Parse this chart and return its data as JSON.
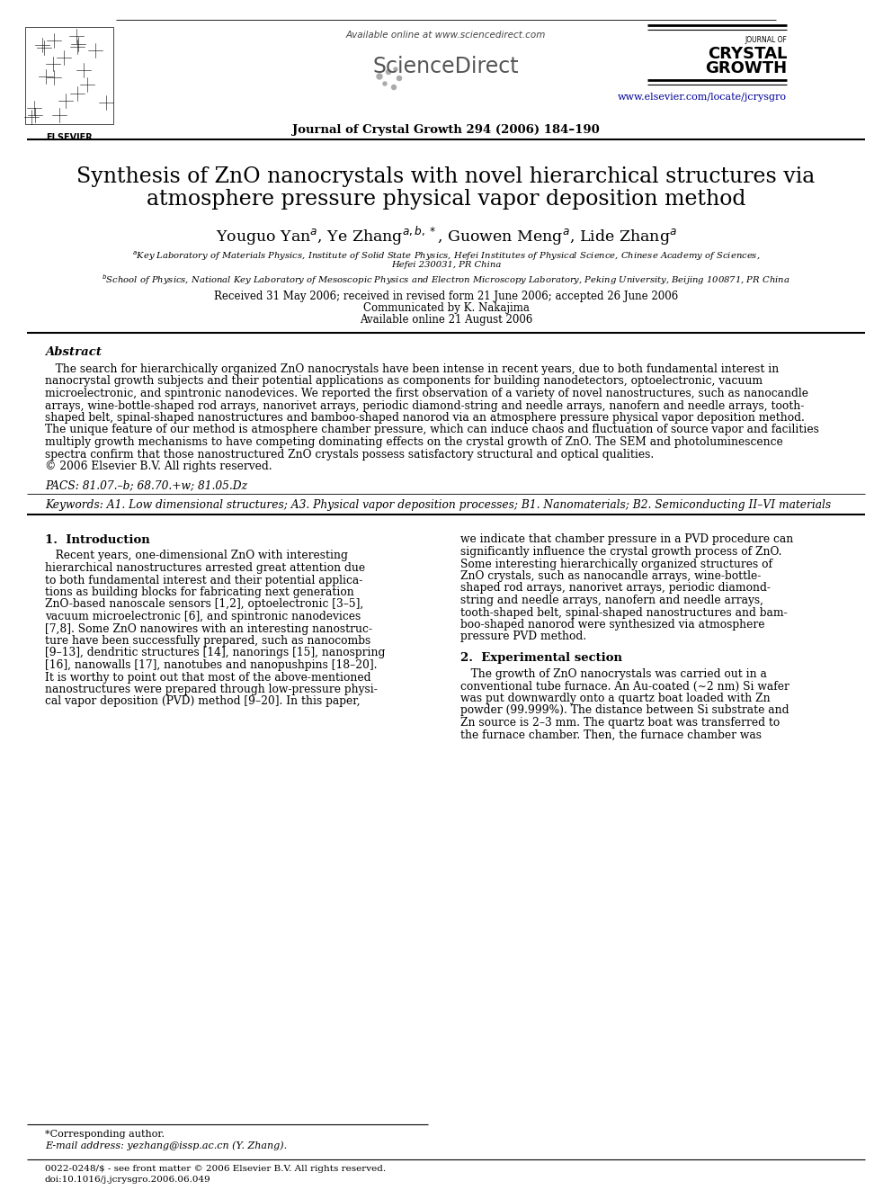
{
  "bg_color": "#ffffff",
  "title_line1": "Synthesis of ZnO nanocrystals with novel hierarchical structures via",
  "title_line2": "atmosphere pressure physical vapor deposition method",
  "authors_str": "Youguo Yan$^a$, Ye Zhang$^{a,b,*}$, Guowen Meng$^a$, Lide Zhang$^a$",
  "affil_a": "$^a$Key Laboratory of Materials Physics, Institute of Solid State Physics, Hefei Institutes of Physical Science, Chinese Academy of Sciences,",
  "affil_a2": "Hefei 230031, PR China",
  "affil_b": "$^b$School of Physics, National Key Laboratory of Mesoscopic Physics and Electron Microscopy Laboratory, Peking University, Beijing 100871, PR China",
  "received": "Received 31 May 2006; received in revised form 21 June 2006; accepted 26 June 2006",
  "communicated": "Communicated by K. Nakajima",
  "available": "Available online 21 August 2006",
  "journal_header": "Journal of Crystal Growth 294 (2006) 184–190",
  "available_online": "Available online at www.sciencedirect.com",
  "url": "www.elsevier.com/locate/jcrysgro",
  "abstract_title": "Abstract",
  "pacs": "PACS: 81.07.–b; 68.70.+w; 81.05.Dz",
  "keywords": "Keywords: A1. Low dimensional structures; A3. Physical vapor deposition processes; B1. Nanomaterials; B2. Semiconducting II–VI materials",
  "intro_title": "1.  Introduction",
  "section2_title": "2.  Experimental section",
  "footnote_corresponding": "*Corresponding author.",
  "footnote_email": "E-mail address: yezhang@issp.ac.cn (Y. Zhang).",
  "footnote_issn": "0022-0248/$ - see front matter © 2006 Elsevier B.V. All rights reserved.",
  "footnote_doi": "doi:10.1016/j.jcrysgro.2006.06.049",
  "abstract_lines": [
    "   The search for hierarchically organized ZnO nanocrystals have been intense in recent years, due to both fundamental interest in",
    "nanocrystal growth subjects and their potential applications as components for building nanodetectors, optoelectronic, vacuum",
    "microelectronic, and spintronic nanodevices. We reported the first observation of a variety of novel nanostructures, such as nanocandle",
    "arrays, wine-bottle-shaped rod arrays, nanorivet arrays, periodic diamond-string and needle arrays, nanofern and needle arrays, tooth-",
    "shaped belt, spinal-shaped nanostructures and bamboo-shaped nanorod via an atmosphere pressure physical vapor deposition method.",
    "The unique feature of our method is atmosphere chamber pressure, which can induce chaos and fluctuation of source vapor and facilities",
    "multiply growth mechanisms to have competing dominating effects on the crystal growth of ZnO. The SEM and photoluminescence",
    "spectra confirm that those nanostructured ZnO crystals possess satisfactory structural and optical qualities.",
    "© 2006 Elsevier B.V. All rights reserved."
  ],
  "intro_left_lines": [
    "   Recent years, one-dimensional ZnO with interesting",
    "hierarchical nanostructures arrested great attention due",
    "to both fundamental interest and their potential applica-",
    "tions as building blocks for fabricating next generation",
    "ZnO-based nanoscale sensors [1,2], optoelectronic [3–5],",
    "vacuum microelectronic [6], and spintronic nanodevices",
    "[7,8]. Some ZnO nanowires with an interesting nanostruc-",
    "ture have been successfully prepared, such as nanocombs",
    "[9–13], dendritic structures [14], nanorings [15], nanospring",
    "[16], nanowalls [17], nanotubes and nanopushpins [18–20].",
    "It is worthy to point out that most of the above-mentioned",
    "nanostructures were prepared through low-pressure physi-",
    "cal vapor deposition (PVD) method [9–20]. In this paper,"
  ],
  "intro_right_lines": [
    "we indicate that chamber pressure in a PVD procedure can",
    "significantly influence the crystal growth process of ZnO.",
    "Some interesting hierarchically organized structures of",
    "ZnO crystals, such as nanocandle arrays, wine-bottle-",
    "shaped rod arrays, nanorivet arrays, periodic diamond-",
    "string and needle arrays, nanofern and needle arrays,",
    "tooth-shaped belt, spinal-shaped nanostructures and bam-",
    "boo-shaped nanorod were synthesized via atmosphere",
    "pressure PVD method."
  ],
  "section2_lines": [
    "   The growth of ZnO nanocrystals was carried out in a",
    "conventional tube furnace. An Au-coated (∼2 nm) Si wafer",
    "was put downwardly onto a quartz boat loaded with Zn",
    "powder (99.999%). The distance between Si substrate and",
    "Zn source is 2–3 mm. The quartz boat was transferred to",
    "the furnace chamber. Then, the furnace chamber was"
  ]
}
